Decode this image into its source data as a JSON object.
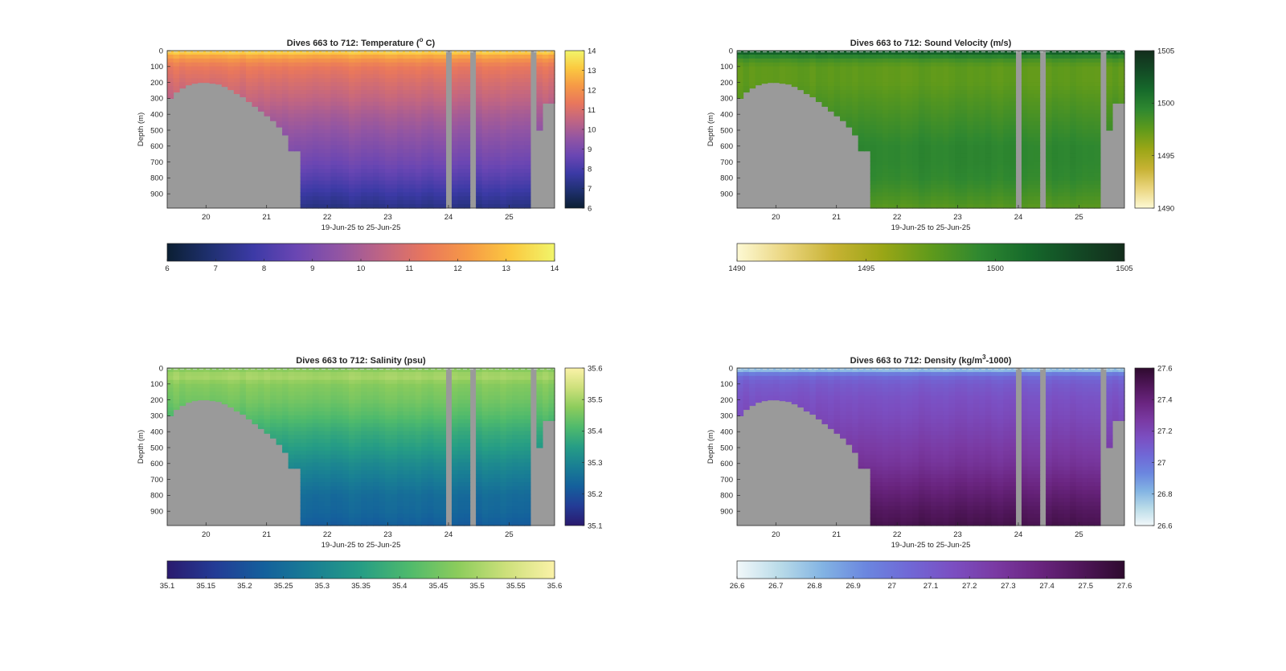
{
  "figure": {
    "xlabel": "19-Jun-25 to 25-Jun-25"
  },
  "chart_data": [
    {
      "id": "temperature",
      "type": "heatmap",
      "title": "Dives 663 to 712: Temperature (°C)",
      "title_parts": [
        "Dives 663 to 712: Temperature (",
        "o",
        " C)"
      ],
      "xlabel": "19-Jun-25 to 25-Jun-25",
      "ylabel": "Depth (m)",
      "x_ticks": [
        20,
        21,
        22,
        23,
        24,
        25
      ],
      "xlim": [
        19.36,
        25.75
      ],
      "y_ticks": [
        0,
        100,
        200,
        300,
        400,
        500,
        600,
        700,
        800,
        900
      ],
      "ylim": [
        0,
        990
      ],
      "y_reversed": true,
      "colorbar": {
        "range": [
          6,
          14
        ],
        "ticks_right": [
          6,
          7,
          8,
          9,
          10,
          11,
          12,
          13,
          14
        ],
        "ticks_bottom": [
          6,
          7,
          8,
          9,
          10,
          11,
          12,
          13,
          14
        ],
        "colors": [
          "#0b1f33",
          "#1f3070",
          "#3c3aa6",
          "#6a46b3",
          "#9255a3",
          "#c06583",
          "#e9775c",
          "#f69a46",
          "#fbc940",
          "#f1f56a"
        ]
      },
      "profile": {
        "depths": [
          0,
          10,
          30,
          60,
          100,
          200,
          300,
          400,
          500,
          600,
          700,
          800,
          900,
          990
        ],
        "values": [
          13.8,
          13.2,
          12.6,
          12.0,
          11.4,
          10.9,
          10.5,
          10.0,
          9.6,
          9.2,
          8.8,
          8.3,
          7.7,
          7.2
        ]
      }
    },
    {
      "id": "sound_velocity",
      "type": "heatmap",
      "title": "Dives 663 to 712: Sound Velocity (m/s)",
      "title_parts": [
        "Dives 663 to 712: Sound Velocity (m/s)",
        "",
        ""
      ],
      "xlabel": "19-Jun-25 to 25-Jun-25",
      "ylabel": "Depth (m)",
      "x_ticks": [
        20,
        21,
        22,
        23,
        24,
        25
      ],
      "xlim": [
        19.36,
        25.75
      ],
      "y_ticks": [
        0,
        100,
        200,
        300,
        400,
        500,
        600,
        700,
        800,
        900
      ],
      "ylim": [
        0,
        990
      ],
      "y_reversed": true,
      "colorbar": {
        "range": [
          1490,
          1505
        ],
        "ticks_right": [
          1490,
          1495,
          1500,
          1505
        ],
        "ticks_bottom": [
          1490,
          1495,
          1500,
          1505
        ],
        "colors": [
          "#fdf9d4",
          "#ead57e",
          "#c7b233",
          "#9aa616",
          "#5f9a1b",
          "#2f8830",
          "#166a2b",
          "#134a25",
          "#132d1c"
        ]
      },
      "profile": {
        "depths": [
          0,
          10,
          30,
          60,
          100,
          200,
          300,
          400,
          500,
          600,
          700,
          800,
          900,
          990
        ],
        "values": [
          1504,
          1502,
          1500,
          1498.5,
          1497.5,
          1497.5,
          1498,
          1498.5,
          1499,
          1499.5,
          1499.5,
          1499.3,
          1498.6,
          1497.8
        ]
      }
    },
    {
      "id": "salinity",
      "type": "heatmap",
      "title": "Dives 663 to 712: Salinity (psu)",
      "title_parts": [
        "Dives 663 to 712: Salinity (psu)",
        "",
        ""
      ],
      "xlabel": "19-Jun-25 to 25-Jun-25",
      "ylabel": "Depth (m)",
      "x_ticks": [
        20,
        21,
        22,
        23,
        24,
        25
      ],
      "xlim": [
        19.36,
        25.75
      ],
      "y_ticks": [
        0,
        100,
        200,
        300,
        400,
        500,
        600,
        700,
        800,
        900
      ],
      "ylim": [
        0,
        990
      ],
      "y_reversed": true,
      "colorbar": {
        "range": [
          35.1,
          35.6
        ],
        "ticks_right": [
          35.1,
          35.2,
          35.3,
          35.4,
          35.5,
          35.6
        ],
        "ticks_bottom": [
          "35.1",
          "35.15",
          "35.2",
          "35.25",
          "35.3",
          "35.35",
          "35.4",
          "35.45",
          "35.5",
          "35.55",
          "35.6"
        ],
        "colors": [
          "#2a1a6e",
          "#233c96",
          "#14609c",
          "#197f94",
          "#269d85",
          "#4fba6c",
          "#8ccc5c",
          "#cde07b",
          "#fbf2a8"
        ]
      },
      "profile": {
        "depths": [
          0,
          20,
          60,
          100,
          200,
          300,
          400,
          500,
          600,
          700,
          800,
          900,
          990
        ],
        "values": [
          35.45,
          35.49,
          35.5,
          35.47,
          35.45,
          35.42,
          35.38,
          35.35,
          35.31,
          35.28,
          35.25,
          35.24,
          35.22
        ]
      }
    },
    {
      "id": "density",
      "type": "heatmap",
      "title": "Dives 663 to 712: Density (kg/m³-1000)",
      "title_parts": [
        "Dives 663 to 712: Density (kg/m",
        "3",
        "-1000)"
      ],
      "xlabel": "19-Jun-25 to 25-Jun-25",
      "ylabel": "Depth (m)",
      "x_ticks": [
        20,
        21,
        22,
        23,
        24,
        25
      ],
      "xlim": [
        19.36,
        25.75
      ],
      "y_ticks": [
        0,
        100,
        200,
        300,
        400,
        500,
        600,
        700,
        800,
        900
      ],
      "ylim": [
        0,
        990
      ],
      "y_reversed": true,
      "colorbar": {
        "range": [
          26.6,
          27.6
        ],
        "ticks_right": [
          26.6,
          26.8,
          27,
          27.2,
          27.4,
          27.6
        ],
        "ticks_bottom": [
          "26.6",
          "26.7",
          "26.8",
          "26.9",
          "27",
          "27.1",
          "27.2",
          "27.3",
          "27.4",
          "27.5",
          "27.6"
        ],
        "colors": [
          "#f2f8fa",
          "#b9dbe8",
          "#82b3e3",
          "#6b86df",
          "#7068d6",
          "#7b4fc2",
          "#7a3aa3",
          "#6a2580",
          "#4f1659",
          "#2e0a2e"
        ]
      },
      "profile": {
        "depths": [
          0,
          10,
          30,
          60,
          100,
          200,
          300,
          400,
          500,
          600,
          700,
          800,
          900,
          990
        ],
        "values": [
          26.65,
          26.78,
          26.95,
          27.05,
          27.1,
          27.15,
          27.18,
          27.22,
          27.26,
          27.3,
          27.36,
          27.42,
          27.48,
          27.52
        ]
      }
    }
  ]
}
